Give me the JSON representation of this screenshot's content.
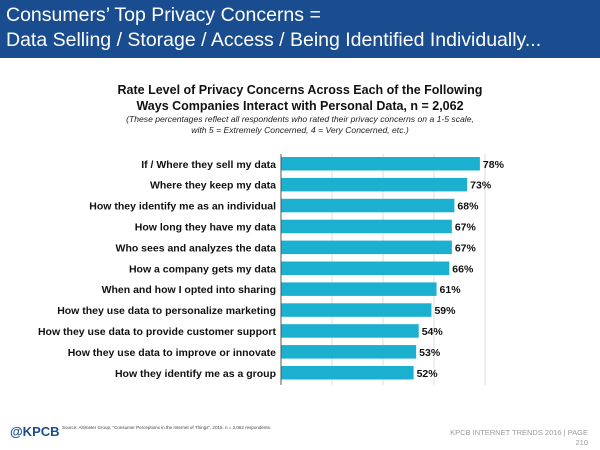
{
  "slide": {
    "title_line1": "Consumers’ Top Privacy Concerns =",
    "title_line2": "Data Selling / Storage / Access / Being Identified Individually...",
    "logo": "@KPCB",
    "source": "Source: Altimeter Group, \"Consumer Perceptions in the Internet of Things\", 2015. n = 2,062 respondents.",
    "footer_brand": "KPCB INTERNET TRENDS 2016 | PAGE",
    "page_number": "210"
  },
  "chart_data": {
    "type": "bar",
    "orientation": "horizontal",
    "title_line1": "Rate Level of Privacy Concerns Across Each of the Following",
    "title_line2": "Ways Companies Interact with Personal Data, n = 2,062",
    "subtitle_line1": "(These percentages reflect all respondents who rated their privacy concerns on a 1-5 scale,",
    "subtitle_line2": "with 5 = Extremely Concerned, 4 = Very Concerned, etc.)",
    "categories": [
      "If / Where they sell my data",
      "Where they keep my data",
      "How they identify me as an individual",
      "How long they have my data",
      "Who sees and analyzes the data",
      "How a company gets my data",
      "When and how I opted into sharing",
      "How they use data to personalize marketing",
      "How they use data to provide customer support",
      "How they use data to improve or innovate",
      "How they identify me as a group"
    ],
    "values": [
      78,
      73,
      68,
      67,
      67,
      66,
      61,
      59,
      54,
      53,
      52
    ],
    "value_labels": [
      "78%",
      "73%",
      "68%",
      "67%",
      "67%",
      "66%",
      "61%",
      "59%",
      "54%",
      "53%",
      "52%"
    ],
    "xlim": [
      0,
      100
    ],
    "bar_color": "#1bafd0",
    "grid": true,
    "legend": "none"
  }
}
